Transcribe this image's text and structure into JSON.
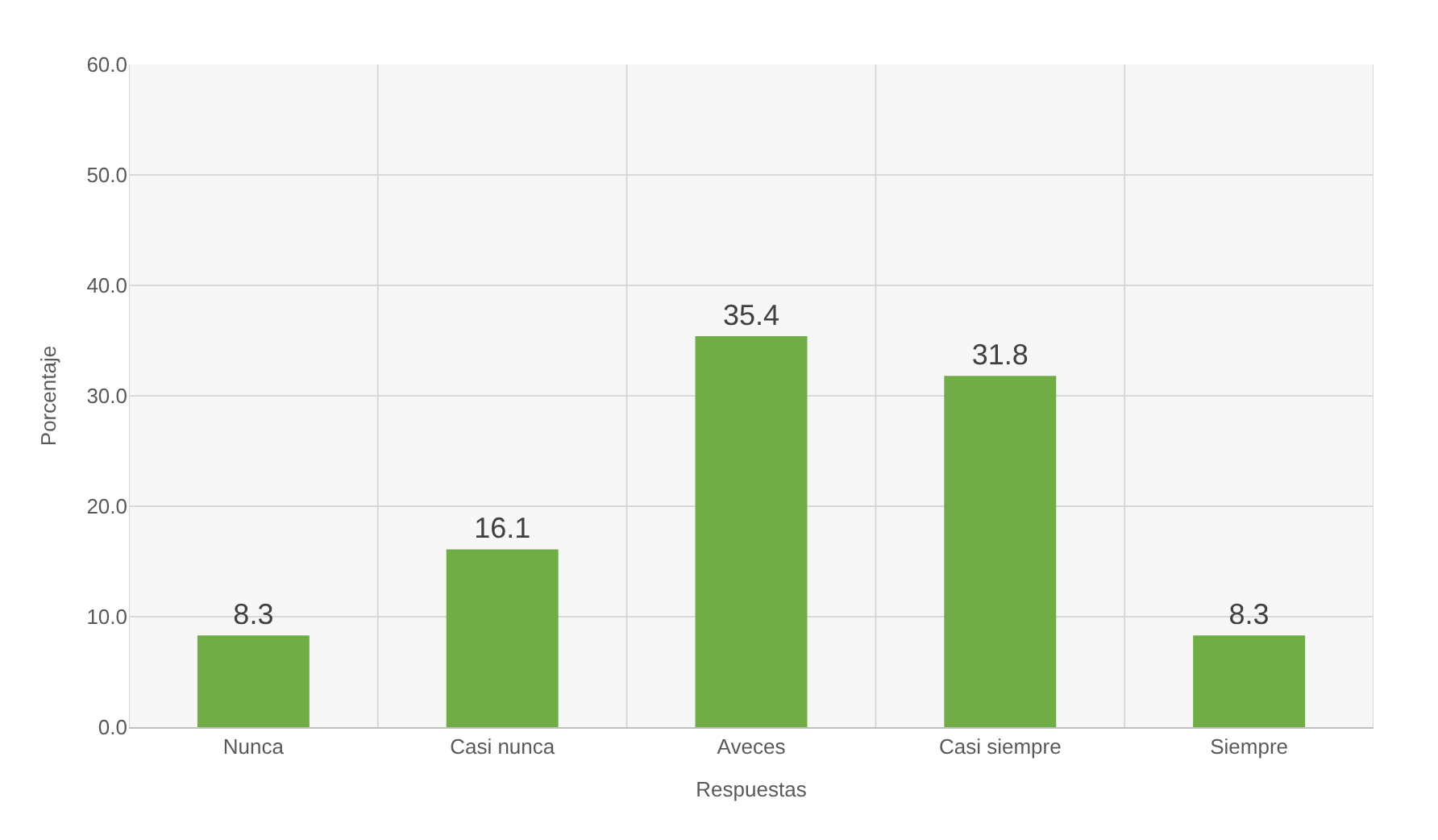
{
  "chart_data": {
    "type": "bar",
    "xlabel": "Respuestas",
    "ylabel": "Porcentaje",
    "categories": [
      "Nunca",
      "Casi nunca",
      "Aveces",
      "Casi siempre",
      "Siempre"
    ],
    "values": [
      8.3,
      16.1,
      35.4,
      31.8,
      8.3
    ],
    "color": "#70ad47",
    "ylim": [
      0,
      60
    ],
    "yticks": [
      {
        "value": 0,
        "label": "0.0"
      },
      {
        "value": 10,
        "label": "10.0"
      },
      {
        "value": 20,
        "label": "20.0"
      },
      {
        "value": 30,
        "label": "30.0"
      },
      {
        "value": 40,
        "label": "40.0"
      },
      {
        "value": 50,
        "label": "50.0"
      },
      {
        "value": 60,
        "label": "60.0"
      }
    ],
    "grid": true,
    "data_labels": true
  }
}
